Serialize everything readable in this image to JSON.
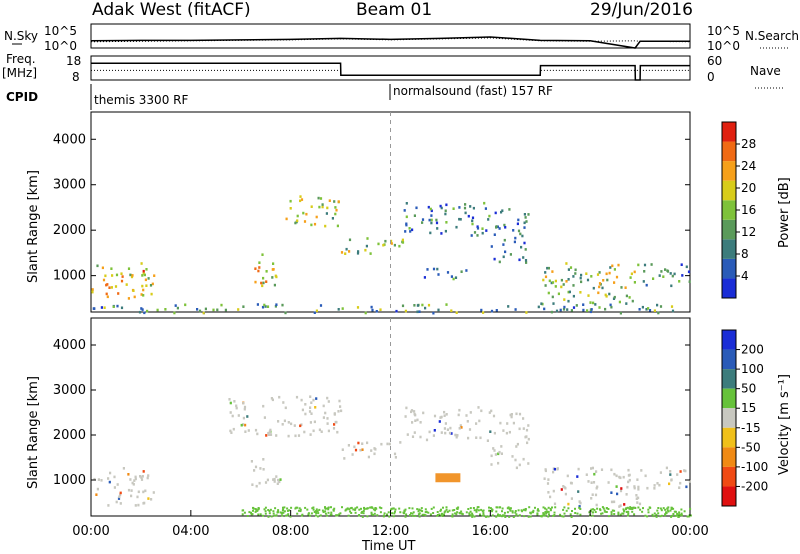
{
  "header": {
    "station": "Adak West (fitACF)",
    "beam": "Beam 01",
    "date": "29/Jun/2016"
  },
  "colors": {
    "scatter_gray": "#c8c8c0",
    "axis": "#000000"
  },
  "chart_data": [
    {
      "type": "line",
      "name_label": "N.Sky",
      "right_label": "N.Search",
      "y_ticks_left": [
        "10^5",
        "10^0"
      ],
      "y_ticks_right": [
        "10^5",
        "10^0"
      ],
      "x": [
        0,
        2,
        4,
        6,
        8,
        10,
        12,
        14,
        16,
        18,
        20,
        21.8,
        22,
        24
      ],
      "series": [
        {
          "values": [
            1.5,
            1.6,
            1.6,
            1.7,
            1.8,
            2.0,
            1.8,
            2.0,
            2.3,
            1.6,
            1.5,
            0.0,
            1.4,
            1.4
          ]
        },
        {
          "values": [
            1.3,
            1.4,
            1.5,
            1.6,
            1.7,
            1.9,
            1.7,
            1.9,
            2.1,
            1.5,
            1.4,
            1.5,
            1.4,
            1.3
          ]
        }
      ],
      "ylim": [
        0,
        5
      ]
    },
    {
      "type": "line",
      "name_label": "Freq.",
      "unit_label": "[MHz]",
      "right_label": "Nave",
      "y_ticks_left": [
        "18",
        "8"
      ],
      "y_ticks_right": [
        "60",
        "0"
      ],
      "x": [
        0,
        10,
        10.01,
        18,
        18.01,
        21.8,
        21.81,
        22,
        22.01,
        24
      ],
      "series": [
        {
          "values": [
            15,
            15,
            10,
            10,
            14,
            14,
            8,
            8,
            14,
            14
          ]
        },
        {
          "values": [
            12,
            12,
            10,
            10,
            12,
            12,
            12,
            12,
            12,
            12
          ]
        }
      ],
      "ylim": [
        8,
        18
      ]
    },
    {
      "type": "table",
      "label": "CPID",
      "segments": [
        {
          "start": 0,
          "end": 12,
          "text": "themis 3300 RF"
        },
        {
          "start": 12,
          "end": 24,
          "text": "normalsound (fast) 157 RF"
        }
      ]
    },
    {
      "type": "heatmap",
      "ylabel": "Slant Range [km]",
      "y_ticks": [
        "1000",
        "2000",
        "3000",
        "4000"
      ],
      "ylim": [
        200,
        4600
      ],
      "colorbar": {
        "label": "Power [dB]",
        "ticks": [
          "4",
          "8",
          "12",
          "16",
          "20",
          "24",
          "28"
        ],
        "colors": [
          "#1a2dd6",
          "#2a5bb8",
          "#3c7c7c",
          "#5a9a5a",
          "#7ec23a",
          "#d8cc1a",
          "#f6a01a",
          "#f06a14",
          "#e02010"
        ]
      },
      "patches": [
        {
          "t0": 0.0,
          "t1": 2.5,
          "r0": 450,
          "r1": 1300,
          "level": 0.65
        },
        {
          "t0": 6.4,
          "t1": 7.6,
          "r0": 800,
          "r1": 1500,
          "level": 0.6
        },
        {
          "t0": 7.7,
          "t1": 9.9,
          "r0": 2100,
          "r1": 2800,
          "level": 0.55
        },
        {
          "t0": 10.0,
          "t1": 12.5,
          "r0": 1500,
          "r1": 1900,
          "level": 0.45
        },
        {
          "t0": 12.5,
          "t1": 16.0,
          "r0": 1900,
          "r1": 2650,
          "level": 0.3
        },
        {
          "t0": 13.0,
          "t1": 15.0,
          "r0": 950,
          "r1": 1200,
          "level": 0.25
        },
        {
          "t0": 16.0,
          "t1": 17.5,
          "r0": 1300,
          "r1": 2500,
          "level": 0.2
        },
        {
          "t0": 18.0,
          "t1": 22.0,
          "r0": 400,
          "r1": 1300,
          "level": 0.5
        },
        {
          "t0": 22.0,
          "t1": 24.0,
          "r0": 800,
          "r1": 1300,
          "level": 0.3
        },
        {
          "t0": 0.0,
          "t1": 24.0,
          "r0": 200,
          "r1": 400,
          "level": 0.35
        }
      ]
    },
    {
      "type": "heatmap",
      "ylabel": "Slant Range [km]",
      "xlabel": "Time UT",
      "x_ticks": [
        "00:00",
        "04:00",
        "08:00",
        "12:00",
        "16:00",
        "20:00",
        "00:00"
      ],
      "y_ticks": [
        "1000",
        "2000",
        "3000",
        "4000"
      ],
      "ylim": [
        200,
        4600
      ],
      "colorbar": {
        "label": "Velocity [m s⁻¹]",
        "ticks": [
          "200",
          "100",
          "50",
          "15",
          "-15",
          "-50",
          "-100",
          "-200"
        ],
        "colors": [
          "#1a2dd6",
          "#2a5bb8",
          "#3c7c7c",
          "#66c23a",
          "#c8c8c0",
          "#f0c01a",
          "#f08a14",
          "#f04a14",
          "#e01010"
        ]
      },
      "patches": [
        {
          "t0": 0.0,
          "t1": 2.5,
          "r0": 450,
          "r1": 1300
        },
        {
          "t0": 6.4,
          "t1": 7.6,
          "r0": 800,
          "r1": 1500
        },
        {
          "t0": 5.5,
          "t1": 10.0,
          "r0": 2000,
          "r1": 2900
        },
        {
          "t0": 10.0,
          "t1": 12.5,
          "r0": 1500,
          "r1": 1900
        },
        {
          "t0": 12.5,
          "t1": 16.0,
          "r0": 1900,
          "r1": 2650
        },
        {
          "t0": 16.0,
          "t1": 17.5,
          "r0": 1300,
          "r1": 2500
        },
        {
          "t0": 18.0,
          "t1": 22.0,
          "r0": 400,
          "r1": 1300
        },
        {
          "t0": 22.0,
          "t1": 24.0,
          "r0": 800,
          "r1": 1300
        }
      ],
      "orange_patch": {
        "t0": 13.8,
        "t1": 14.8,
        "r0": 950,
        "r1": 1150
      },
      "green_band": {
        "t0": 6.0,
        "t1": 24.0,
        "r0": 200,
        "r1": 420
      }
    }
  ]
}
